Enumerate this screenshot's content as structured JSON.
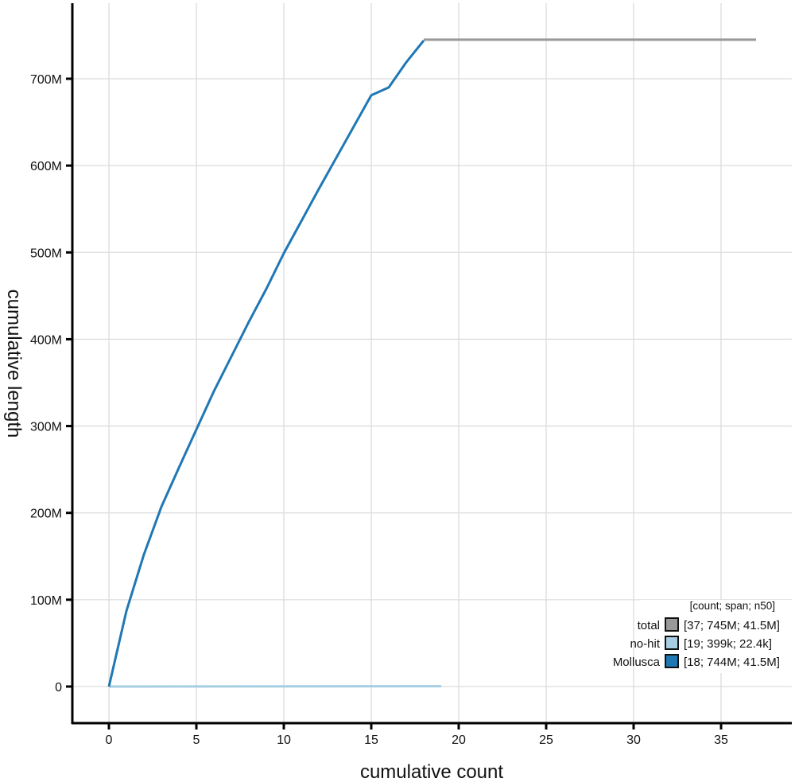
{
  "chart_data": {
    "type": "line",
    "title": "",
    "xlabel": "cumulative count",
    "ylabel": "cumulative length",
    "xlim": [
      -2.1,
      39
    ],
    "ylim": [
      -42,
      780
    ],
    "x_ticks": [
      0,
      5,
      10,
      15,
      20,
      25,
      30,
      35
    ],
    "x_tick_labels": [
      "0",
      "5",
      "10",
      "15",
      "20",
      "25",
      "30",
      "35"
    ],
    "y_ticks": [
      0,
      100,
      200,
      300,
      400,
      500,
      600,
      700
    ],
    "y_tick_labels": [
      "0",
      "100M",
      "200M",
      "300M",
      "400M",
      "500M",
      "600M",
      "700M"
    ],
    "y_unit": "Mbp",
    "grid": true,
    "legend_position": "lower-right",
    "legend_header": "[count; span; n50]",
    "series": [
      {
        "name": "total",
        "stats": "[37; 745M; 41.5M]",
        "color": "#999999",
        "x": [
          18,
          37
        ],
        "y": [
          745,
          745
        ]
      },
      {
        "name": "no-hit",
        "stats": "[19; 399k; 22.4k]",
        "color": "#a6cee3",
        "x": [
          0,
          19
        ],
        "y": [
          0,
          0.4
        ]
      },
      {
        "name": "Mollusca",
        "stats": "[18; 744M; 41.5M]",
        "color": "#1f78b4",
        "x": [
          0,
          1,
          2,
          3,
          4,
          5,
          6,
          7,
          8,
          9,
          10,
          11,
          12,
          13,
          14,
          15,
          16,
          17,
          18
        ],
        "y": [
          0,
          87,
          152,
          207,
          252,
          296,
          340,
          380,
          420,
          458,
          499,
          536,
          573,
          609,
          645,
          681,
          690,
          719,
          744
        ]
      }
    ]
  }
}
